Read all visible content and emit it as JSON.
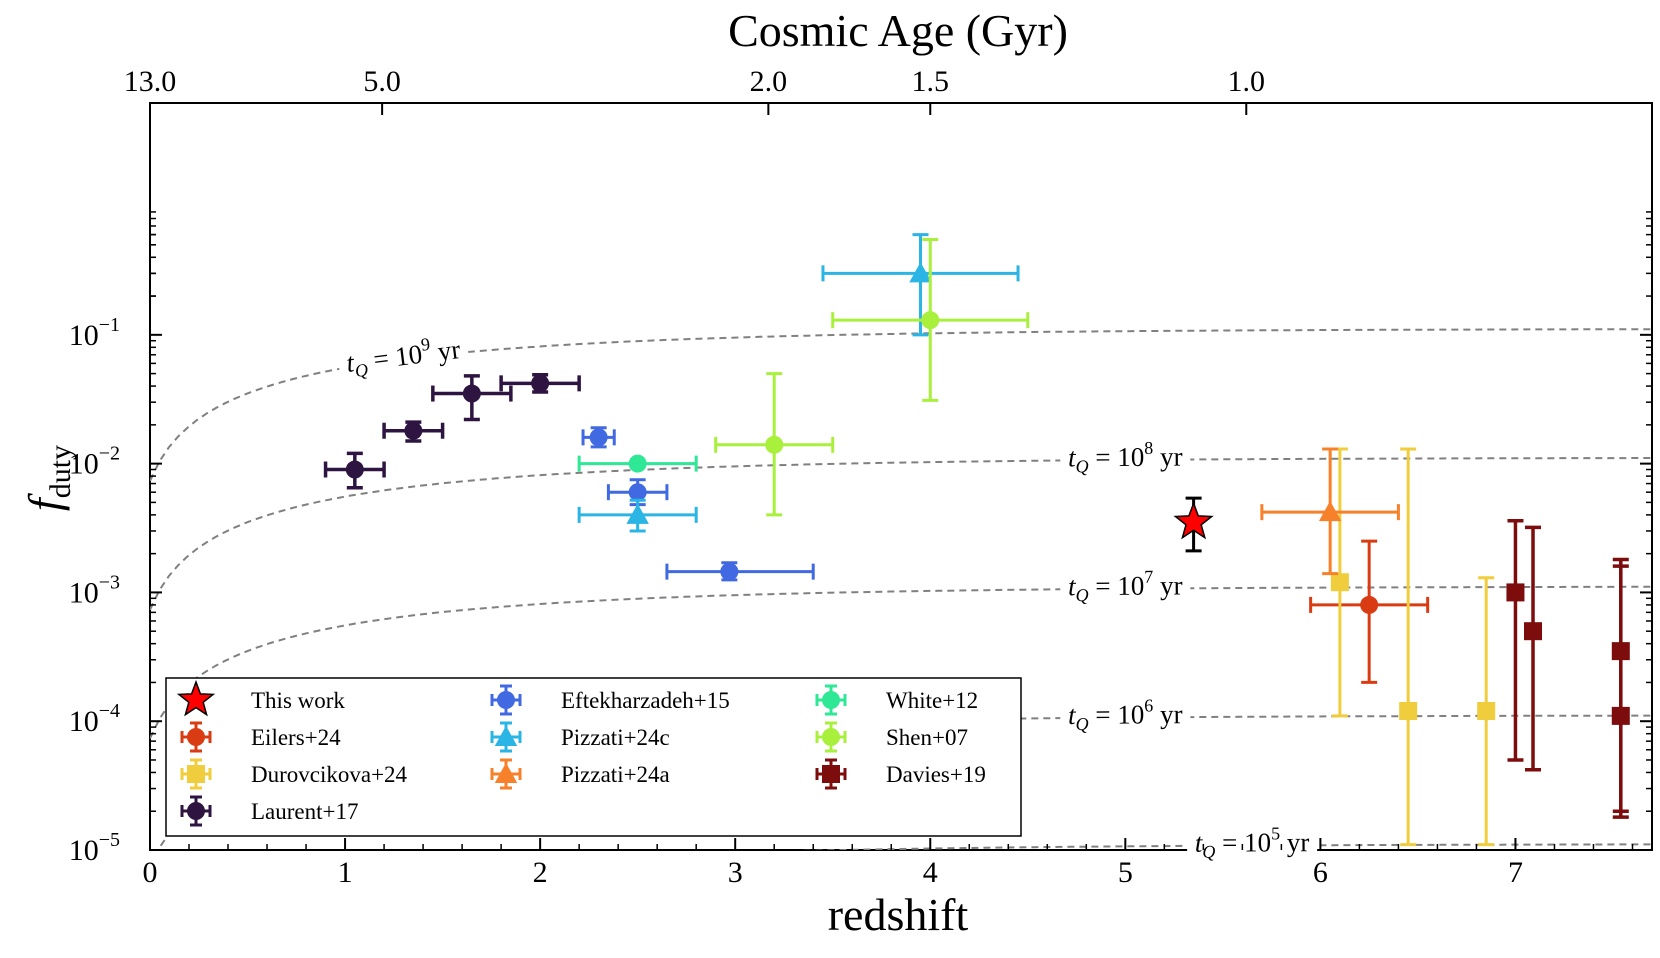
{
  "chart_data": {
    "type": "scatter",
    "title": "",
    "xlabel": "redshift",
    "ylabel_main": "f",
    "ylabel_sub": "duty",
    "top_axis_label": "Cosmic Age (Gyr)",
    "xlim": [
      0,
      7.7
    ],
    "ylim_log10": [
      -5,
      0.8
    ],
    "x_ticks": [
      0,
      1,
      2,
      3,
      4,
      5,
      6,
      7
    ],
    "x_tick_labels": [
      "0",
      "1",
      "2",
      "3",
      "4",
      "5",
      "6",
      "7"
    ],
    "y_ticks_exp": [
      -5,
      -4,
      -3,
      -2,
      -1
    ],
    "y_tick_labels": [
      "−5",
      "−4",
      "−3",
      "−2",
      "−1"
    ],
    "y_tick_base": "10",
    "top_ticks": [
      {
        "label": "13.0",
        "z": 0.0
      },
      {
        "label": "5.0",
        "z": 1.19
      },
      {
        "label": "2.0",
        "z": 3.17
      },
      {
        "label": "1.5",
        "z": 4.0
      },
      {
        "label": "1.0",
        "z": 5.62
      }
    ],
    "curves": [
      {
        "tq_exp": "9",
        "label_x": 1.3,
        "log_a": -2.133,
        "b": 1.0
      },
      {
        "tq_exp": "8",
        "label_x": 5.0,
        "log_a": -3.133,
        "b": 1.0
      },
      {
        "tq_exp": "7",
        "label_x": 5.0,
        "log_a": -4.133,
        "b": 1.0
      },
      {
        "tq_exp": "6",
        "label_x": 5.0,
        "log_a": -5.133,
        "b": 1.0
      },
      {
        "tq_exp": "5",
        "label_x": 5.65,
        "log_a": -6.133,
        "b": 1.0
      }
    ],
    "curve_label_prefix": "t",
    "curve_label_sub": "Q",
    "curve_label_eq": " = 10",
    "curve_label_unit": " yr",
    "series": [
      {
        "name": "This work",
        "color": "#ff0000",
        "marker": "star",
        "points": [
          {
            "x": 5.35,
            "y": 0.0035,
            "yerr_lo": 0.0021,
            "yerr_hi": 0.0054
          }
        ]
      },
      {
        "name": "Eilers+24",
        "color": "#d93b12",
        "marker": "circle",
        "points": [
          {
            "x": 6.25,
            "y": 0.0008,
            "x_lo": 5.95,
            "x_hi": 6.55,
            "yerr_lo": 0.0002,
            "yerr_hi": 0.0025
          }
        ]
      },
      {
        "name": "Durovcikova+24",
        "color": "#f0cd3c",
        "marker": "square",
        "points": [
          {
            "x": 6.1,
            "y": 0.0012,
            "yerr_lo": 0.00011,
            "yerr_hi": 0.013
          },
          {
            "x": 6.45,
            "y": 0.00012,
            "yerr_lo": 1.1e-05,
            "yerr_hi": 0.013
          },
          {
            "x": 6.85,
            "y": 0.00012,
            "yerr_lo": 1.1e-05,
            "yerr_hi": 0.0013
          }
        ]
      },
      {
        "name": "Laurent+17",
        "color": "#2e1440",
        "marker": "circle",
        "points": [
          {
            "x": 1.05,
            "y": 0.009,
            "x_lo": 0.9,
            "x_hi": 1.2,
            "yerr_lo": 0.0065,
            "yerr_hi": 0.012
          },
          {
            "x": 1.35,
            "y": 0.018,
            "x_lo": 1.2,
            "x_hi": 1.5,
            "yerr_lo": 0.015,
            "yerr_hi": 0.021
          },
          {
            "x": 1.65,
            "y": 0.035,
            "x_lo": 1.45,
            "x_hi": 1.85,
            "yerr_lo": 0.022,
            "yerr_hi": 0.048
          },
          {
            "x": 2.0,
            "y": 0.042,
            "x_lo": 1.8,
            "x_hi": 2.2,
            "yerr_lo": 0.036,
            "yerr_hi": 0.049
          }
        ]
      },
      {
        "name": "Eftekharzadeh+15",
        "color": "#4169e1",
        "marker": "circle",
        "points": [
          {
            "x": 2.3,
            "y": 0.016,
            "x_lo": 2.22,
            "x_hi": 2.38,
            "yerr_lo": 0.0135,
            "yerr_hi": 0.019
          },
          {
            "x": 2.5,
            "y": 0.006,
            "x_lo": 2.35,
            "x_hi": 2.65,
            "yerr_lo": 0.0048,
            "yerr_hi": 0.0075
          },
          {
            "x": 2.97,
            "y": 0.00145,
            "x_lo": 2.65,
            "x_hi": 3.4,
            "yerr_lo": 0.00125,
            "yerr_hi": 0.0017
          }
        ]
      },
      {
        "name": "Pizzati+24c",
        "color": "#2ab5e5",
        "marker": "triangle",
        "points": [
          {
            "x": 2.5,
            "y": 0.004,
            "x_lo": 2.2,
            "x_hi": 2.8,
            "yerr_lo": 0.003,
            "yerr_hi": 0.0052
          },
          {
            "x": 3.95,
            "y": 0.3,
            "x_lo": 3.45,
            "x_hi": 4.45,
            "yerr_lo": 0.1,
            "yerr_hi": 0.6
          }
        ]
      },
      {
        "name": "Pizzati+24a",
        "color": "#f7812a",
        "marker": "triangle",
        "points": [
          {
            "x": 6.05,
            "y": 0.0042,
            "x_lo": 5.7,
            "x_hi": 6.4,
            "yerr_lo": 0.0014,
            "yerr_hi": 0.013
          }
        ]
      },
      {
        "name": "White+12",
        "color": "#2ee896",
        "marker": "circle",
        "points": [
          {
            "x": 2.5,
            "y": 0.01,
            "x_lo": 2.2,
            "x_hi": 2.8
          }
        ]
      },
      {
        "name": "Shen+07",
        "color": "#a8f03c",
        "marker": "circle",
        "points": [
          {
            "x": 3.2,
            "y": 0.014,
            "x_lo": 2.9,
            "x_hi": 3.5,
            "yerr_lo": 0.004,
            "yerr_hi": 0.05
          },
          {
            "x": 4.0,
            "y": 0.13,
            "x_lo": 3.5,
            "x_hi": 4.5,
            "yerr_lo": 0.031,
            "yerr_hi": 0.55
          }
        ]
      },
      {
        "name": "Davies+19",
        "color": "#7d0d0d",
        "marker": "square",
        "points": [
          {
            "x": 7.0,
            "y": 0.001,
            "yerr_lo": 5e-05,
            "yerr_hi": 0.0036
          },
          {
            "x": 7.09,
            "y": 0.0005,
            "yerr_lo": 4.2e-05,
            "yerr_hi": 0.0032
          },
          {
            "x": 7.54,
            "y": 0.00035,
            "yerr_lo": 1.8e-05,
            "yerr_hi": 0.0018
          },
          {
            "x": 7.54,
            "y": 0.00011,
            "yerr_lo": 2e-05,
            "yerr_hi": 0.0016
          }
        ]
      }
    ],
    "legend": {
      "placement": "lower-left",
      "columns": [
        [
          "This work",
          "Eilers+24",
          "Durovcikova+24",
          "Laurent+17"
        ],
        [
          "Eftekharzadeh+15",
          "Pizzati+24c",
          "Pizzati+24a"
        ],
        [
          "White+12",
          "Shen+07",
          "Davies+19"
        ]
      ]
    }
  }
}
